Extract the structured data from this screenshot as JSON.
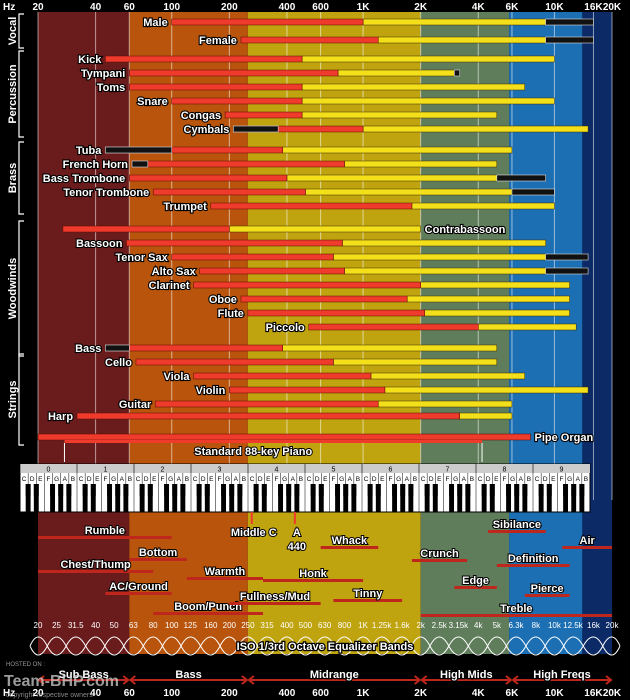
{
  "chart_data": {
    "type": "range-bar",
    "x_scale": "log",
    "xlim": [
      20,
      20000
    ],
    "hz_label": "Hz",
    "axis_ticks": [
      {
        "v": 20,
        "t": "20"
      },
      {
        "v": 40,
        "t": "40"
      },
      {
        "v": 60,
        "t": "60"
      },
      {
        "v": 100,
        "t": "100"
      },
      {
        "v": 200,
        "t": "200"
      },
      {
        "v": 400,
        "t": "400"
      },
      {
        "v": 600,
        "t": "600"
      },
      {
        "v": 1000,
        "t": "1K"
      },
      {
        "v": 2000,
        "t": "2K"
      },
      {
        "v": 4000,
        "t": "4K"
      },
      {
        "v": 6000,
        "t": "6K"
      },
      {
        "v": 10000,
        "t": "10K"
      },
      {
        "v": 16000,
        "t": "16K"
      },
      {
        "v": 20000,
        "t": "20K"
      }
    ],
    "bands": [
      {
        "from": 20,
        "to": 60,
        "color": "#6a1c1c"
      },
      {
        "from": 60,
        "to": 250,
        "color": "#b8540c"
      },
      {
        "from": 250,
        "to": 2000,
        "color": "#bfa410"
      },
      {
        "from": 2000,
        "to": 5800,
        "color": "#5f7d5a"
      },
      {
        "from": 5800,
        "to": 14000,
        "color": "#1d6fb4"
      },
      {
        "from": 14000,
        "to": 20000,
        "color": "#0b2a66"
      }
    ],
    "groups": [
      {
        "name": "Vocal",
        "rows": [
          0,
          1
        ]
      },
      {
        "name": "Percussion",
        "rows": [
          2,
          7
        ]
      },
      {
        "name": "Brass",
        "rows": [
          8,
          12
        ]
      },
      {
        "name": "Woodwinds",
        "rows": [
          13,
          21
        ]
      },
      {
        "name": "Strings",
        "rows": [
          22,
          27
        ]
      }
    ],
    "instruments": [
      {
        "name": "Male",
        "fund": [
          100,
          1000
        ],
        "harm": [
          1000,
          9000
        ],
        "over": [
          9000,
          16000
        ],
        "align": "left"
      },
      {
        "name": "Female",
        "fund": [
          230,
          1200
        ],
        "harm": [
          1200,
          9000
        ],
        "over": [
          9000,
          16000
        ],
        "align": "left"
      },
      {
        "name": "Kick",
        "fund": [
          45,
          480
        ],
        "harm": [
          480,
          10000
        ],
        "align": "left"
      },
      {
        "name": "Tympani",
        "fund": [
          60,
          740
        ],
        "harm": [
          740,
          3000
        ],
        "over": [
          3000,
          3200
        ],
        "align": "left"
      },
      {
        "name": "Toms",
        "fund": [
          60,
          480
        ],
        "harm": [
          480,
          7000
        ],
        "align": "left"
      },
      {
        "name": "Snare",
        "fund": [
          100,
          480
        ],
        "harm": [
          480,
          10000
        ],
        "align": "left"
      },
      {
        "name": "Congas",
        "fund": [
          190,
          480
        ],
        "harm": [
          480,
          5000
        ],
        "align": "left"
      },
      {
        "name": "Cymbals",
        "fund": [
          210,
          1000
        ],
        "harm": [
          1000,
          15000
        ],
        "over": [
          210,
          360
        ],
        "align": "left"
      },
      {
        "name": "Tuba",
        "fund": [
          45,
          380
        ],
        "harm": [
          380,
          6000
        ],
        "over": [
          45,
          100
        ],
        "align": "left"
      },
      {
        "name": "French Horn",
        "fund": [
          62,
          800
        ],
        "harm": [
          800,
          5000
        ],
        "over": [
          62,
          75
        ],
        "align": "left"
      },
      {
        "name": "Bass Trombone",
        "fund": [
          60,
          400
        ],
        "harm": [
          400,
          5000
        ],
        "over": [
          5000,
          9000
        ],
        "align": "left"
      },
      {
        "name": "Tenor Trombone",
        "fund": [
          80,
          500
        ],
        "harm": [
          500,
          6000
        ],
        "over": [
          6000,
          10000
        ],
        "align": "left"
      },
      {
        "name": "Trumpet",
        "fund": [
          160,
          1800
        ],
        "harm": [
          1800,
          10000
        ],
        "align": "left"
      },
      {
        "name": "Contrabassoon",
        "fund": [
          27,
          200
        ],
        "harm": [
          200,
          2000
        ],
        "align": "right"
      },
      {
        "name": "Bassoon",
        "fund": [
          58,
          780
        ],
        "harm": [
          780,
          9000
        ],
        "align": "left"
      },
      {
        "name": "Tenor Sax",
        "fund": [
          100,
          700
        ],
        "harm": [
          700,
          9000
        ],
        "over": [
          9000,
          15000
        ],
        "align": "left"
      },
      {
        "name": "Alto Sax",
        "fund": [
          140,
          800
        ],
        "harm": [
          800,
          9000
        ],
        "over": [
          9000,
          15000
        ],
        "align": "left"
      },
      {
        "name": "Clarinet",
        "fund": [
          130,
          2000
        ],
        "harm": [
          2000,
          12000
        ],
        "align": "left"
      },
      {
        "name": "Oboe",
        "fund": [
          230,
          1700
        ],
        "harm": [
          1700,
          12000
        ],
        "align": "left"
      },
      {
        "name": "Flute",
        "fund": [
          250,
          2100
        ],
        "harm": [
          2100,
          12000
        ],
        "align": "left"
      },
      {
        "name": "Piccolo",
        "fund": [
          520,
          4000
        ],
        "harm": [
          4000,
          13000
        ],
        "align": "left"
      },
      {
        "name": "Bass",
        "fund": [
          45,
          380
        ],
        "harm": [
          380,
          5000
        ],
        "over": [
          45,
          60
        ],
        "align": "left"
      },
      {
        "name": "Cello",
        "fund": [
          65,
          700
        ],
        "harm": [
          700,
          5000
        ],
        "align": "left"
      },
      {
        "name": "Viola",
        "fund": [
          130,
          1100
        ],
        "harm": [
          1100,
          7000
        ],
        "align": "left"
      },
      {
        "name": "Violin",
        "fund": [
          200,
          1300
        ],
        "harm": [
          1300,
          15000
        ],
        "align": "left"
      },
      {
        "name": "Guitar",
        "fund": [
          82,
          1200
        ],
        "harm": [
          1200,
          6000
        ],
        "align": "left"
      },
      {
        "name": "Harp",
        "fund": [
          32,
          3200
        ],
        "harm": [
          3200,
          6000
        ],
        "align": "left"
      },
      {
        "name": "Pipe Organ",
        "fund": [
          20,
          7500
        ],
        "align": "right"
      }
    ],
    "piano": {
      "label": "Standard 88-key Piano",
      "from": 27.5,
      "to": 4186
    },
    "piano_keys_octave_labels": [
      "0",
      "1",
      "2",
      "3",
      "4",
      "5",
      "6",
      "7",
      "8",
      "9"
    ],
    "piano_note_letters": [
      "C",
      "D",
      "E",
      "F",
      "G",
      "A",
      "B"
    ],
    "markers": [
      {
        "label": "Middle C",
        "v": 262
      },
      {
        "label": "A",
        "label2": "440",
        "v": 440
      }
    ],
    "qualities": [
      {
        "label": "Rumble",
        "from": 20,
        "to": 100
      },
      {
        "label": "Chest/Thump",
        "from": 20,
        "to": 80
      },
      {
        "label": "Bottom",
        "from": 60,
        "to": 120
      },
      {
        "label": "AC/Ground",
        "from": 45,
        "to": 100
      },
      {
        "label": "Boom/Punch",
        "from": 80,
        "to": 300
      },
      {
        "label": "Warmth",
        "from": 120,
        "to": 300
      },
      {
        "label": "Fullness/Mud",
        "from": 200,
        "to": 600
      },
      {
        "label": "Honk",
        "from": 300,
        "to": 1000
      },
      {
        "label": "Whack",
        "from": 600,
        "to": 1200
      },
      {
        "label": "Tinny",
        "from": 700,
        "to": 1600
      },
      {
        "label": "Crunch",
        "from": 1800,
        "to": 3500
      },
      {
        "label": "Edge",
        "from": 3000,
        "to": 5000
      },
      {
        "label": "Sibilance",
        "from": 4500,
        "to": 9000
      },
      {
        "label": "Definition",
        "from": 5000,
        "to": 12000
      },
      {
        "label": "Pierce",
        "from": 7000,
        "to": 12000
      },
      {
        "label": "Air",
        "from": 11000,
        "to": 20000
      },
      {
        "label": "Treble",
        "from": 2000,
        "to": 20000
      }
    ],
    "eq_title": "ISO 1/3rd Octave Equalizer Bands",
    "eq_bands": [
      "20",
      "25",
      "31.5",
      "40",
      "50",
      "63",
      "80",
      "100",
      "125",
      "160",
      "200",
      "250",
      "315",
      "400",
      "500",
      "630",
      "800",
      "1K",
      "1.25k",
      "1.6k",
      "2k",
      "2.5k",
      "3.15k",
      "4k",
      "5k",
      "6.3k",
      "8k",
      "10k",
      "12.5k",
      "16k",
      "20k"
    ],
    "eq_values": [
      20,
      25,
      31.5,
      40,
      50,
      63,
      80,
      100,
      125,
      160,
      200,
      250,
      315,
      400,
      500,
      630,
      800,
      1000,
      1250,
      1600,
      2000,
      2500,
      3150,
      4000,
      5000,
      6300,
      8000,
      10000,
      12500,
      16000,
      20000
    ],
    "ranges": [
      {
        "label": "Sub Bass",
        "from": 20,
        "to": 60
      },
      {
        "label": "Bass",
        "from": 60,
        "to": 250
      },
      {
        "label": "Midrange",
        "from": 250,
        "to": 2000
      },
      {
        "label": "High Mids",
        "from": 2000,
        "to": 6000
      },
      {
        "label": "High Freqs",
        "from": 6000,
        "to": 20000
      }
    ],
    "watermark": {
      "logo": "Team-BHP.com",
      "hosted": "HOSTED ON :",
      "copyright": "copyright respective owners"
    }
  }
}
